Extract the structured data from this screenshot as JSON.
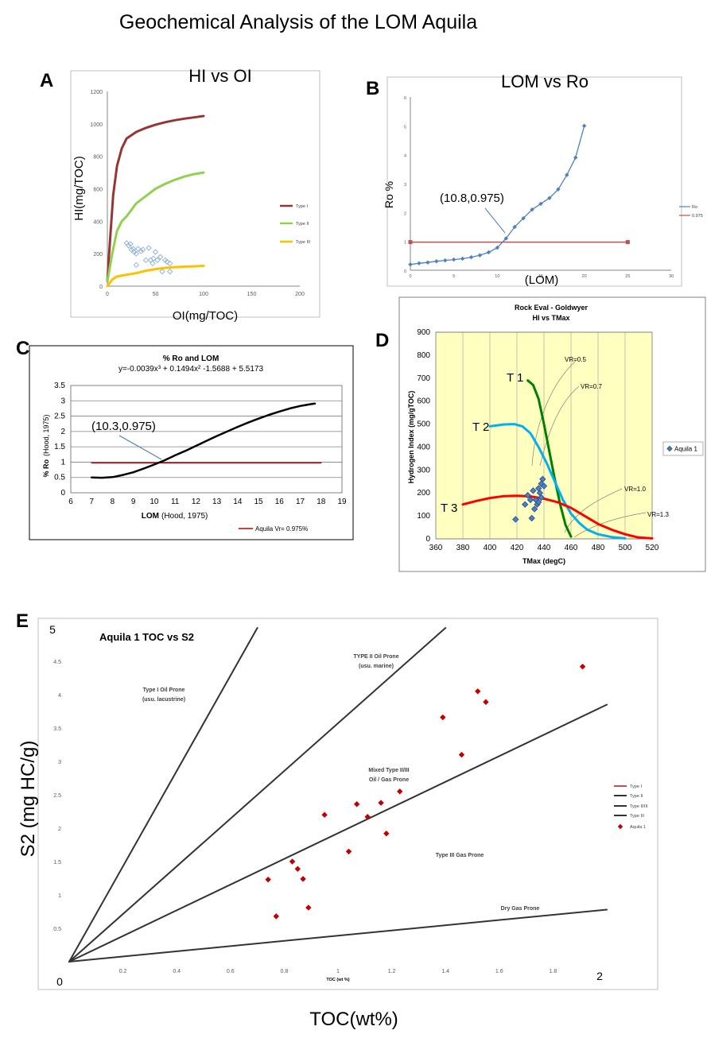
{
  "page": {
    "title": "Geochemical Analysis of the LOM Aquila"
  },
  "chart_data": [
    {
      "id": "A",
      "type": "scatter",
      "panel_label": "A",
      "title": "HI vs OI",
      "xlabel": "OI(mg/TOC)",
      "ylabel": "HI(mg/TOC)",
      "xlim": [
        0,
        200
      ],
      "ylim": [
        0,
        1200
      ],
      "xticks": [
        0,
        50,
        100,
        150,
        200
      ],
      "yticks": [
        0,
        200,
        400,
        600,
        800,
        1000,
        1200
      ],
      "legend_position": "right",
      "series": [
        {
          "name": "Type I",
          "kind": "line",
          "color": "#943634",
          "points": [
            [
              0,
              30
            ],
            [
              3,
              300
            ],
            [
              6,
              560
            ],
            [
              10,
              740
            ],
            [
              15,
              850
            ],
            [
              20,
              910
            ],
            [
              30,
              950
            ],
            [
              40,
              975
            ],
            [
              50,
              995
            ],
            [
              60,
              1010
            ],
            [
              70,
              1022
            ],
            [
              80,
              1032
            ],
            [
              90,
              1040
            ],
            [
              100,
              1048
            ]
          ]
        },
        {
          "name": "Type II",
          "kind": "line",
          "color": "#92D050",
          "points": [
            [
              0,
              30
            ],
            [
              5,
              200
            ],
            [
              10,
              340
            ],
            [
              15,
              400
            ],
            [
              20,
              430
            ],
            [
              30,
              510
            ],
            [
              40,
              555
            ],
            [
              50,
              600
            ],
            [
              60,
              630
            ],
            [
              70,
              655
            ],
            [
              80,
              675
            ],
            [
              90,
              690
            ],
            [
              100,
              700
            ]
          ]
        },
        {
          "name": "Type III",
          "kind": "line",
          "color": "#FFC000",
          "points": [
            [
              0,
              0
            ],
            [
              5,
              40
            ],
            [
              10,
              60
            ],
            [
              20,
              70
            ],
            [
              30,
              80
            ],
            [
              40,
              95
            ],
            [
              50,
              105
            ],
            [
              60,
              112
            ],
            [
              70,
              117
            ],
            [
              80,
              120
            ],
            [
              90,
              122
            ],
            [
              100,
              125
            ]
          ]
        },
        {
          "name": "",
          "kind": "scatter",
          "color": "#95B3D7",
          "points": [
            [
              20,
              265
            ],
            [
              22,
              250
            ],
            [
              24,
              260
            ],
            [
              25,
              225
            ],
            [
              27,
              230
            ],
            [
              28,
              210
            ],
            [
              30,
              200
            ],
            [
              32,
              230
            ],
            [
              35,
              215
            ],
            [
              37,
              225
            ],
            [
              30,
              130
            ],
            [
              40,
              160
            ],
            [
              43,
              235
            ],
            [
              45,
              160
            ],
            [
              47,
              140
            ],
            [
              48,
              170
            ],
            [
              50,
              210
            ],
            [
              52,
              160
            ],
            [
              55,
              180
            ],
            [
              57,
              90
            ],
            [
              60,
              160
            ],
            [
              62,
              150
            ],
            [
              65,
              90
            ],
            [
              65,
              140
            ]
          ]
        }
      ]
    },
    {
      "id": "B",
      "type": "line",
      "panel_label": "B",
      "title": "LOM vs Ro",
      "xlabel": "(LOM)",
      "ylabel": "Ro %",
      "xlim": [
        0,
        30
      ],
      "ylim": [
        0,
        6
      ],
      "xticks": [
        0,
        5,
        10,
        15,
        20,
        25,
        30
      ],
      "yticks": [
        0,
        1,
        2,
        3,
        4,
        5,
        6
      ],
      "annotation": "(10.8,0.975)",
      "legend_position": "right",
      "series": [
        {
          "name": "Ro",
          "color": "#4F81BD",
          "points": [
            [
              0,
              0.2
            ],
            [
              1,
              0.24
            ],
            [
              2,
              0.27
            ],
            [
              3,
              0.31
            ],
            [
              4,
              0.34
            ],
            [
              5,
              0.37
            ],
            [
              6,
              0.4
            ],
            [
              7,
              0.45
            ],
            [
              8,
              0.52
            ],
            [
              9,
              0.62
            ],
            [
              10,
              0.78
            ],
            [
              11,
              1.1
            ],
            [
              12,
              1.5
            ],
            [
              13,
              1.8
            ],
            [
              14,
              2.1
            ],
            [
              15,
              2.3
            ],
            [
              16,
              2.5
            ],
            [
              17,
              2.8
            ],
            [
              18,
              3.3
            ],
            [
              19,
              3.9
            ],
            [
              20,
              5.0
            ]
          ]
        },
        {
          "name": "0.975",
          "color": "#C0504D",
          "points": [
            [
              0,
              0.975
            ],
            [
              25,
              0.975
            ]
          ]
        }
      ]
    },
    {
      "id": "C",
      "type": "line",
      "panel_label": "C",
      "title": "% Ro and LOM",
      "subtitle": "y=-0.0039x³ + 0.1494x² -1.5688 + 5.5173",
      "xlabel": "LOM",
      "xlabel_suffix": "(Hood, 1975)",
      "ylabel": "% Ro",
      "ylabel_suffix": "(Hood, 1975)",
      "xlim": [
        6,
        19
      ],
      "ylim": [
        0,
        3.5
      ],
      "xticks": [
        6,
        7,
        8,
        9,
        10,
        11,
        12,
        13,
        14,
        15,
        16,
        17,
        18,
        19
      ],
      "yticks": [
        0,
        0.5,
        1,
        1.5,
        2,
        2.5,
        3,
        3.5
      ],
      "annotation": "(10.3,0.975)",
      "legend_position": "bottom-right",
      "series": [
        {
          "name": "",
          "color": "#000000",
          "points": [
            [
              7,
              0.5
            ],
            [
              7.5,
              0.49
            ],
            [
              8,
              0.51
            ],
            [
              8.5,
              0.58
            ],
            [
              9,
              0.67
            ],
            [
              9.5,
              0.79
            ],
            [
              10,
              0.92
            ],
            [
              10.5,
              1.06
            ],
            [
              11,
              1.22
            ],
            [
              11.5,
              1.37
            ],
            [
              12,
              1.53
            ],
            [
              12.5,
              1.69
            ],
            [
              13,
              1.85
            ],
            [
              13.5,
              2.0
            ],
            [
              14,
              2.15
            ],
            [
              14.5,
              2.29
            ],
            [
              15,
              2.42
            ],
            [
              15.5,
              2.54
            ],
            [
              16,
              2.65
            ],
            [
              16.5,
              2.75
            ],
            [
              17,
              2.83
            ],
            [
              17.5,
              2.89
            ],
            [
              17.7,
              2.91
            ]
          ]
        },
        {
          "name": "Aquila Vr= 0.975%",
          "color": "#C00000",
          "points": [
            [
              7,
              0.975
            ],
            [
              18,
              0.975
            ]
          ]
        }
      ]
    },
    {
      "id": "D",
      "type": "line",
      "panel_label": "D",
      "title": "Rock Eval - Goldwyer",
      "subtitle": "HI vs TMax",
      "xlabel": "TMax (degC)",
      "ylabel": "Hydrogen Index (mg/gTOC)",
      "xlim": [
        360,
        520
      ],
      "ylim": [
        0,
        900
      ],
      "xticks": [
        360,
        380,
        400,
        420,
        440,
        460,
        480,
        500,
        520
      ],
      "yticks": [
        0,
        100,
        200,
        300,
        400,
        500,
        600,
        700,
        800,
        900
      ],
      "background": "#FFFFC0",
      "curve_labels": [
        "T 1",
        "T 2",
        "T 3"
      ],
      "vr_labels": [
        "VR=0.5",
        "VR=0.7",
        "VR=1.0",
        "VR=1.3"
      ],
      "legend_position": "right",
      "series": [
        {
          "name": "T 1",
          "color": "#008000",
          "points": [
            [
              428,
              690
            ],
            [
              432,
              670
            ],
            [
              436,
              610
            ],
            [
              440,
              500
            ],
            [
              444,
              380
            ],
            [
              448,
              260
            ],
            [
              452,
              150
            ],
            [
              456,
              60
            ],
            [
              460,
              10
            ]
          ]
        },
        {
          "name": "T 2",
          "color": "#00B0F0",
          "points": [
            [
              400,
              490
            ],
            [
              410,
              498
            ],
            [
              418,
              500
            ],
            [
              424,
              490
            ],
            [
              430,
              460
            ],
            [
              436,
              400
            ],
            [
              442,
              330
            ],
            [
              448,
              250
            ],
            [
              454,
              170
            ],
            [
              460,
              110
            ],
            [
              466,
              70
            ],
            [
              472,
              40
            ],
            [
              480,
              20
            ],
            [
              490,
              8
            ],
            [
              500,
              2
            ]
          ]
        },
        {
          "name": "T 3",
          "color": "#FF0000",
          "points": [
            [
              380,
              150
            ],
            [
              390,
              165
            ],
            [
              400,
              178
            ],
            [
              410,
              186
            ],
            [
              420,
              188
            ],
            [
              430,
              185
            ],
            [
              440,
              175
            ],
            [
              450,
              160
            ],
            [
              460,
              135
            ],
            [
              470,
              100
            ],
            [
              480,
              65
            ],
            [
              490,
              40
            ],
            [
              500,
              20
            ],
            [
              510,
              6
            ],
            [
              520,
              2
            ]
          ]
        },
        {
          "name": "Aquila 1",
          "kind": "scatter",
          "color": "#4F81BD",
          "points": [
            [
              419,
              85
            ],
            [
              426,
              150
            ],
            [
              428,
              190
            ],
            [
              430,
              170
            ],
            [
              431,
              90
            ],
            [
              432,
              210
            ],
            [
              433,
              130
            ],
            [
              434,
              170
            ],
            [
              435,
              150
            ],
            [
              436,
              220
            ],
            [
              436,
              160
            ],
            [
              437,
              200
            ],
            [
              438,
              240
            ],
            [
              438,
              180
            ],
            [
              439,
              260
            ],
            [
              440,
              230
            ]
          ]
        }
      ]
    },
    {
      "id": "E",
      "type": "scatter",
      "panel_label": "E",
      "title": "Aquila 1   TOC vs S2",
      "xlabel": "TOC (wt %)",
      "ylabel": "S2 (mg HC/g)",
      "outer_xlabel": "TOC(wt%)",
      "xlim": [
        0,
        2
      ],
      "ylim": [
        0,
        5
      ],
      "xticks": [
        0.2,
        0.4,
        0.6,
        0.8,
        1,
        1.2,
        1.4,
        1.6,
        1.8
      ],
      "yticks": [
        0.5,
        1,
        1.5,
        2,
        2.5,
        3,
        3.5,
        4,
        4.5
      ],
      "axis_end_labels": {
        "x0": "0",
        "xmax": "2",
        "ymax": "5"
      },
      "regions": [
        "Type I Oil Prone",
        "(usu. lacustrine)",
        "TYPE II Oil Prone",
        "(usu. marine)",
        "Mixed Type II/III",
        "Oil / Gas Prone",
        "Type III Gas Prone",
        "Dry Gas Prone"
      ],
      "legend_position": "right",
      "series": [
        {
          "name": "Type I",
          "kind": "line",
          "color": "#C0504D",
          "points": [
            [
              0,
              0
            ],
            [
              0.7,
              5.0
            ]
          ]
        },
        {
          "name": "Type II",
          "kind": "line",
          "color": "#333333",
          "points": [
            [
              0,
              0
            ],
            [
              1.4,
              5.0
            ]
          ]
        },
        {
          "name": "Type II/III",
          "kind": "line",
          "color": "#333333",
          "points": [
            [
              0,
              0
            ],
            [
              2.0,
              3.85
            ]
          ]
        },
        {
          "name": "Type III",
          "kind": "line",
          "color": "#333333",
          "points": [
            [
              0,
              0
            ],
            [
              2.0,
              0.78
            ]
          ]
        },
        {
          "name": "Aquila 1",
          "kind": "scatter",
          "color": "#C00000",
          "points": [
            [
              0.74,
              1.23
            ],
            [
              0.77,
              0.68
            ],
            [
              0.83,
              1.5
            ],
            [
              0.85,
              1.39
            ],
            [
              0.87,
              1.24
            ],
            [
              0.89,
              0.81
            ],
            [
              0.95,
              2.2
            ],
            [
              1.04,
              1.65
            ],
            [
              1.07,
              2.36
            ],
            [
              1.11,
              2.17
            ],
            [
              1.16,
              2.38
            ],
            [
              1.18,
              1.92
            ],
            [
              1.23,
              2.55
            ],
            [
              1.39,
              3.66
            ],
            [
              1.46,
              3.1
            ],
            [
              1.52,
              4.05
            ],
            [
              1.55,
              3.89
            ],
            [
              1.91,
              4.42
            ]
          ]
        }
      ]
    }
  ]
}
